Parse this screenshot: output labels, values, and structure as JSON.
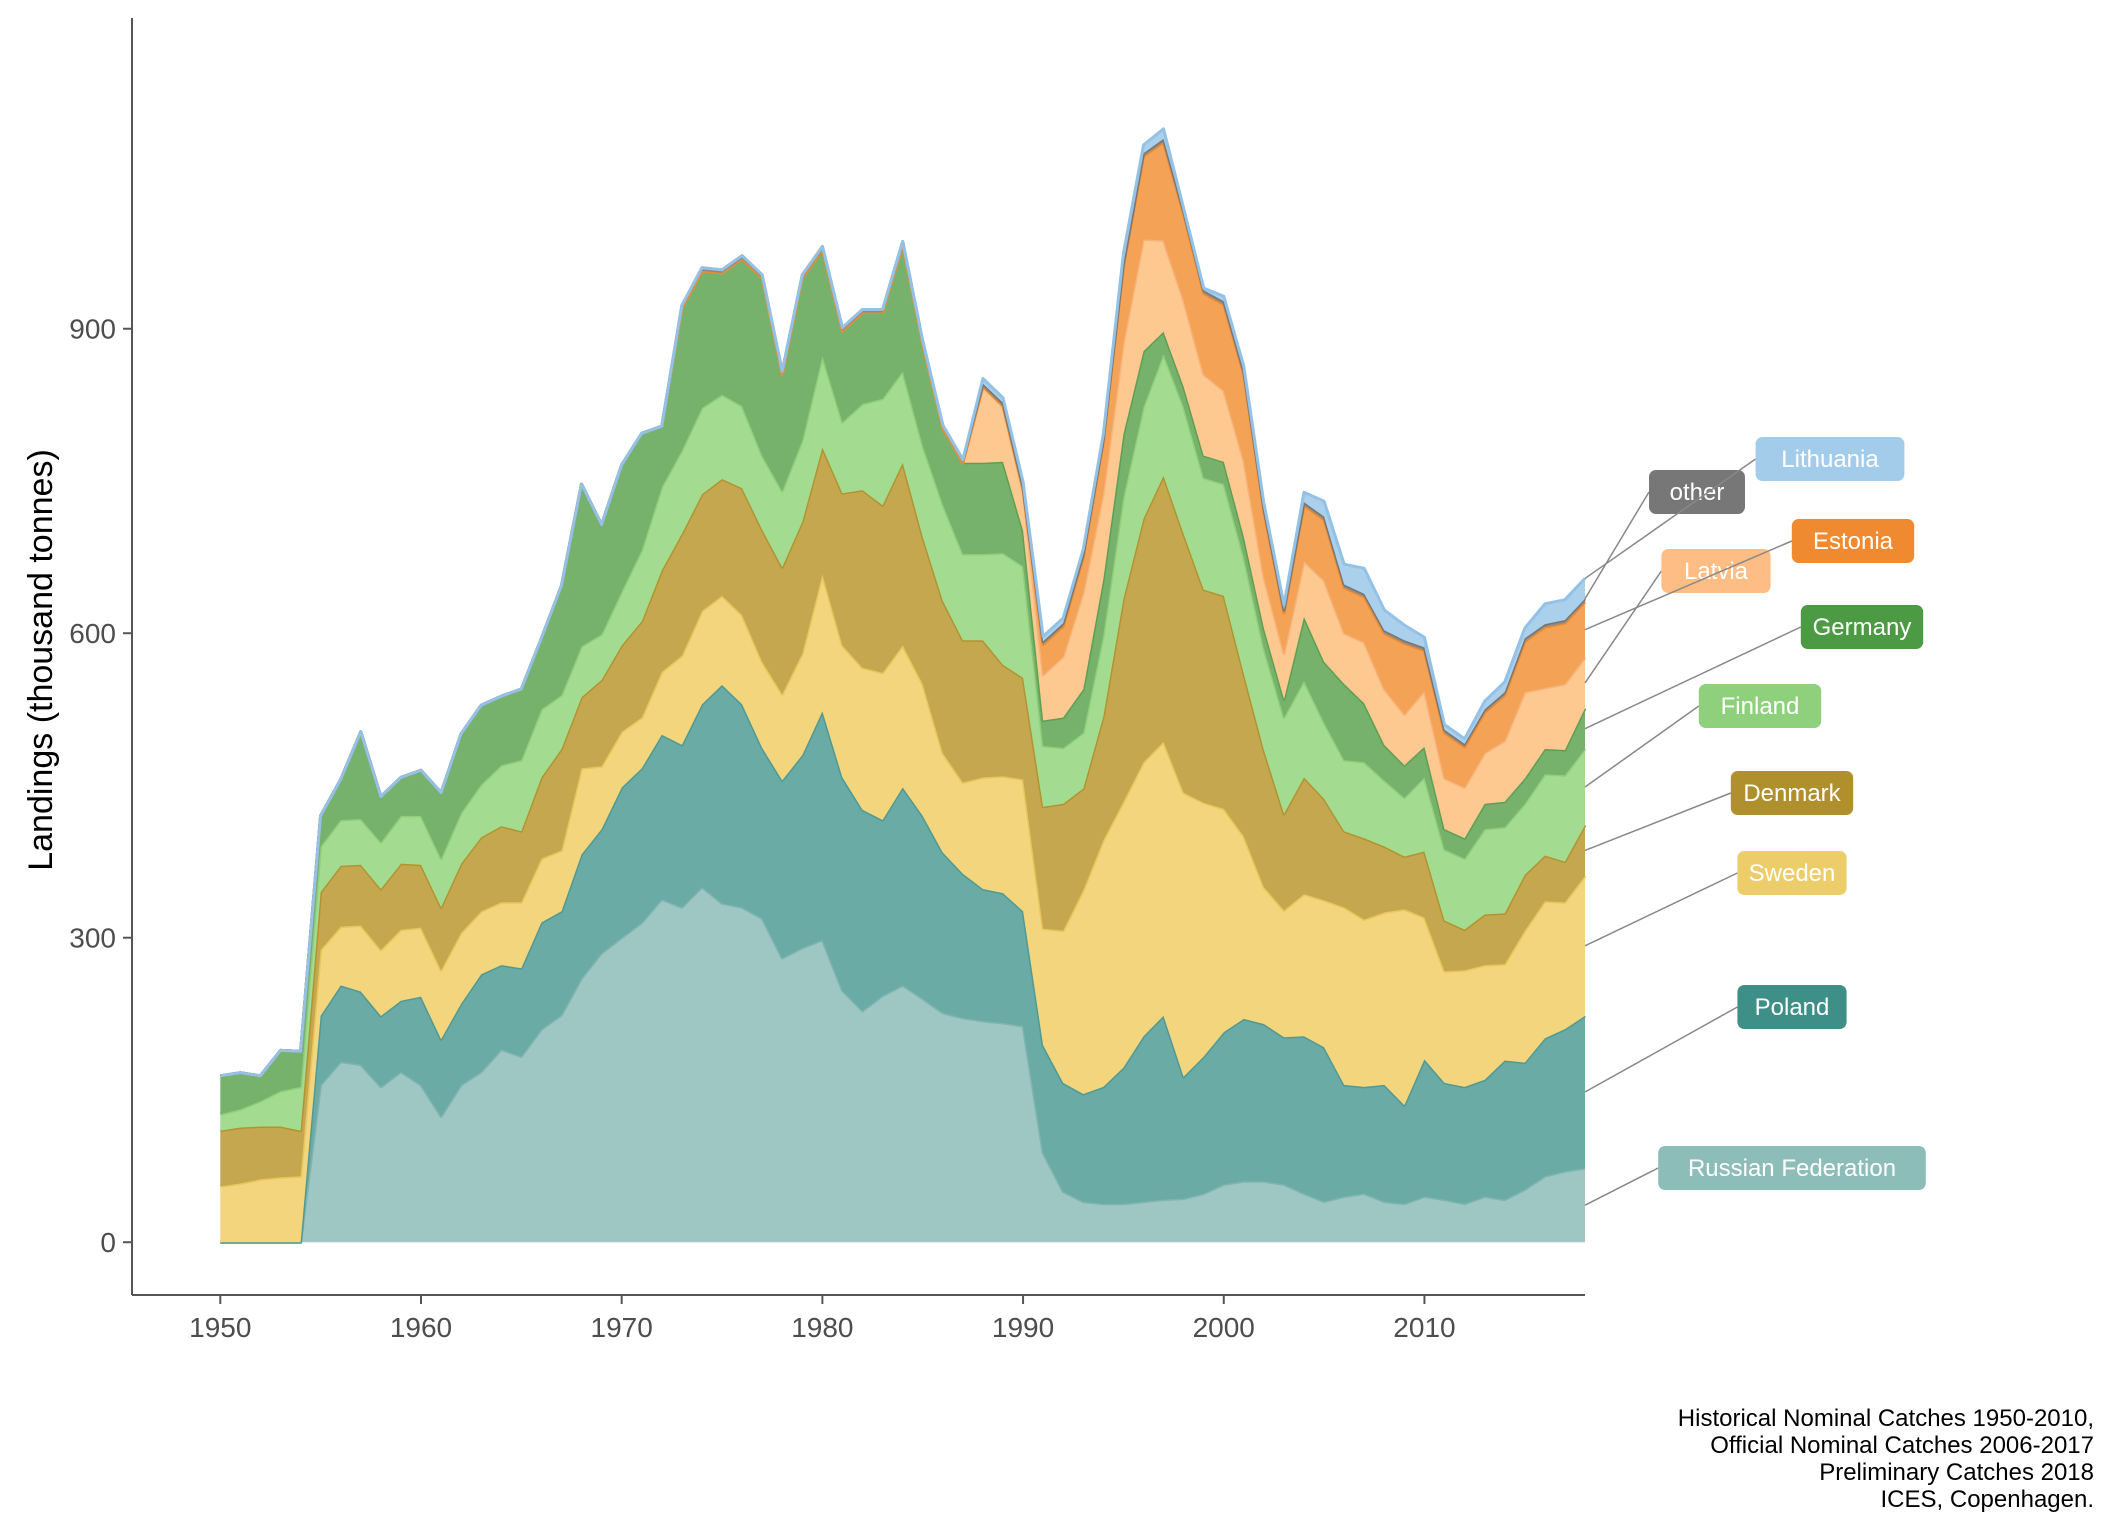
{
  "chart_data": {
    "type": "area",
    "stacked": true,
    "xlabel": "",
    "ylabel": "Landings (thousand tonnes)",
    "xlim": [
      1945.6,
      2018
    ],
    "ylim": [
      -52,
      1150
    ],
    "xticks": [
      1950,
      1960,
      1970,
      1980,
      1990,
      2000,
      2010
    ],
    "yticks": [
      0,
      300,
      600,
      900
    ],
    "grid": false,
    "legend": "labels at right end of areas",
    "x": [
      1950,
      1951,
      1952,
      1953,
      1954,
      1955,
      1956,
      1957,
      1958,
      1959,
      1960,
      1961,
      1962,
      1963,
      1964,
      1965,
      1966,
      1967,
      1968,
      1969,
      1970,
      1971,
      1972,
      1973,
      1974,
      1975,
      1976,
      1977,
      1978,
      1979,
      1980,
      1981,
      1982,
      1983,
      1984,
      1985,
      1986,
      1987,
      1988,
      1989,
      1990,
      1991,
      1992,
      1993,
      1994,
      1995,
      1996,
      1997,
      1998,
      1999,
      2000,
      2001,
      2002,
      2003,
      2004,
      2005,
      2006,
      2007,
      2008,
      2009,
      2010,
      2011,
      2012,
      2013,
      2014,
      2015,
      2016,
      2017,
      2018
    ],
    "series": [
      {
        "name": "Russian Federation",
        "color": "#9ec7c4",
        "line_color": "#7fb4b0",
        "label_color": "#8dbdb9",
        "values": [
          0,
          0,
          0,
          0,
          0,
          155,
          178,
          175,
          153,
          168,
          155,
          124,
          155,
          168,
          190,
          183,
          210,
          224,
          260,
          285,
          300,
          315,
          338,
          330,
          350,
          334,
          330,
          319,
          280,
          290,
          298,
          248,
          228,
          243,
          253,
          240,
          226,
          221,
          218,
          216,
          213,
          88,
          50,
          40,
          38,
          38,
          40,
          42,
          43,
          48,
          57,
          60,
          60,
          57,
          48,
          40,
          45,
          48,
          40,
          38,
          45,
          42,
          38,
          45,
          42,
          52,
          65,
          70,
          73
        ]
      },
      {
        "name": "Poland",
        "color": "#6aaba6",
        "line_color": "#4e9a94",
        "label_color": "#3f8f89",
        "values": [
          0,
          0,
          0,
          0,
          0,
          68,
          75,
          72,
          70,
          70,
          87,
          76,
          80,
          96,
          83,
          87,
          105,
          102,
          122,
          122,
          148,
          152,
          162,
          160,
          180,
          215,
          200,
          168,
          175,
          190,
          225,
          210,
          198,
          173,
          195,
          180,
          158,
          142,
          130,
          128,
          113,
          106,
          107,
          106,
          115,
          134,
          163,
          181,
          120,
          135,
          150,
          160,
          155,
          145,
          155,
          152,
          110,
          105,
          115,
          97,
          135,
          115,
          115,
          115,
          137,
          125,
          136,
          140,
          150
        ]
      },
      {
        "name": "Sweden",
        "color": "#f2d57c",
        "line_color": "#e8c65b",
        "label_color": "#eccd6a",
        "values": [
          55,
          58,
          62,
          64,
          65,
          65,
          58,
          65,
          65,
          70,
          68,
          68,
          70,
          62,
          62,
          65,
          63,
          60,
          85,
          62,
          55,
          50,
          62,
          88,
          92,
          88,
          88,
          85,
          85,
          100,
          135,
          130,
          140,
          145,
          140,
          130,
          98,
          90,
          110,
          115,
          130,
          115,
          150,
          201,
          243,
          262,
          270,
          270,
          280,
          250,
          220,
          180,
          135,
          125,
          140,
          145,
          175,
          165,
          170,
          193,
          140,
          110,
          115,
          113,
          95,
          130,
          135,
          125,
          138
        ]
      },
      {
        "name": "Denmark",
        "color": "#c5a74f",
        "line_color": "#b2942f",
        "label_color": "#b08f2d",
        "values": [
          55,
          55,
          52,
          50,
          45,
          57,
          60,
          60,
          60,
          65,
          62,
          62,
          68,
          73,
          75,
          70,
          80,
          100,
          70,
          85,
          85,
          95,
          100,
          120,
          115,
          115,
          125,
          130,
          125,
          130,
          125,
          150,
          175,
          165,
          180,
          145,
          150,
          140,
          135,
          110,
          100,
          120,
          125,
          100,
          122,
          200,
          240,
          262,
          255,
          210,
          210,
          160,
          135,
          95,
          115,
          100,
          75,
          80,
          65,
          52,
          65,
          50,
          40,
          50,
          50,
          55,
          45,
          40,
          50
        ]
      },
      {
        "name": "Finland",
        "color": "#a3dc91",
        "line_color": "#8fcf7a",
        "label_color": "#8fd07c",
        "values": [
          16,
          18,
          25,
          35,
          43,
          45,
          45,
          45,
          46,
          47,
          48,
          48,
          50,
          52,
          60,
          70,
          67,
          53,
          50,
          45,
          53,
          70,
          82,
          82,
          85,
          83,
          81,
          73,
          75,
          80,
          90,
          70,
          85,
          105,
          90,
          90,
          95,
          85,
          85,
          110,
          110,
          60,
          55,
          55,
          80,
          100,
          110,
          120,
          125,
          110,
          110,
          115,
          100,
          95,
          95,
          75,
          70,
          75,
          65,
          58,
          73,
          70,
          70,
          84,
          85,
          70,
          80,
          85,
          75
        ]
      },
      {
        "name": "Germany",
        "color": "#76b26c",
        "line_color": "#5e9f52",
        "label_color": "#4c9a43",
        "values": [
          38,
          36,
          25,
          40,
          35,
          30,
          40,
          86,
          45,
          38,
          45,
          65,
          78,
          78,
          68,
          70,
          70,
          108,
          160,
          108,
          125,
          115,
          60,
          140,
          135,
          120,
          145,
          175,
          115,
          160,
          105,
          90,
          90,
          85,
          125,
          100,
          75,
          90,
          90,
          90,
          35,
          25,
          30,
          43,
          55,
          62,
          55,
          22,
          20,
          22,
          22,
          20,
          20,
          18,
          63,
          60,
          75,
          58,
          35,
          32,
          30,
          20,
          20,
          25,
          25,
          25,
          25,
          25,
          40
        ]
      },
      {
        "name": "Latvia",
        "color": "#fec891",
        "line_color": "#f6b47a",
        "label_color": "#fdbd84",
        "values": [
          0,
          0,
          0,
          0,
          0,
          0,
          0,
          0,
          0,
          0,
          0,
          0,
          0,
          0,
          0,
          0,
          0,
          0,
          0,
          0,
          0,
          0,
          0,
          0,
          0,
          0,
          0,
          0,
          0,
          0,
          0,
          0,
          0,
          0,
          0,
          0,
          0,
          0,
          75,
          55,
          40,
          45,
          60,
          95,
          85,
          90,
          110,
          90,
          85,
          80,
          70,
          75,
          50,
          45,
          55,
          80,
          50,
          60,
          55,
          50,
          55,
          50,
          50,
          50,
          60,
          85,
          60,
          65,
          50
        ]
      },
      {
        "name": "Estonia",
        "color": "#f4a255",
        "line_color": "#ec8a2e",
        "label_color": "#ef8a31",
        "values": [
          0,
          0,
          0,
          0,
          0,
          0,
          0,
          0,
          0,
          0,
          0,
          0,
          0,
          0,
          0,
          0,
          0,
          0,
          0,
          0,
          0,
          0,
          0,
          0,
          0,
          0,
          0,
          0,
          0,
          0,
          0,
          0,
          0,
          0,
          0,
          0,
          0,
          0,
          0,
          0,
          0,
          30,
          30,
          35,
          50,
          75,
          82,
          97,
          85,
          80,
          85,
          85,
          65,
          40,
          55,
          60,
          45,
          45,
          55,
          70,
          40,
          45,
          40,
          40,
          45,
          50,
          60,
          60,
          55
        ]
      },
      {
        "name": "other",
        "color": "#8a8a8a",
        "line_color": "#777777",
        "label_color": "#777777",
        "values": [
          0,
          0,
          0,
          0,
          0,
          0,
          0,
          0,
          0,
          0,
          0,
          0,
          0,
          0,
          0,
          0,
          0,
          0,
          0,
          0,
          0,
          0,
          0,
          3,
          3,
          3,
          3,
          3,
          3,
          3,
          3,
          3,
          3,
          3,
          3,
          3,
          3,
          3,
          3,
          3,
          3,
          3,
          3,
          3,
          3,
          3,
          3,
          3,
          3,
          3,
          3,
          3,
          3,
          3,
          3,
          3,
          3,
          3,
          3,
          3,
          3,
          3,
          3,
          3,
          3,
          3,
          3,
          3,
          3
        ]
      },
      {
        "name": "Lithuania",
        "color": "#abd0ec",
        "line_color": "#93c2e6",
        "label_color": "#a3cbea",
        "values": [
          0,
          0,
          0,
          0,
          0,
          0,
          0,
          0,
          0,
          0,
          0,
          0,
          0,
          0,
          0,
          0,
          0,
          0,
          0,
          0,
          0,
          0,
          0,
          0,
          0,
          0,
          0,
          0,
          0,
          0,
          0,
          0,
          0,
          0,
          0,
          0,
          0,
          0,
          5,
          5,
          5,
          5,
          5,
          5,
          5,
          10,
          8,
          10,
          3,
          2,
          5,
          5,
          5,
          5,
          10,
          15,
          20,
          25,
          20,
          15,
          10,
          5,
          5,
          8,
          10,
          10,
          20,
          20,
          20
        ]
      }
    ]
  },
  "caption": {
    "lines": [
      "Historical Nominal Catches 1950-2010,",
      "Official Nominal Catches 2006-2017",
      "Preliminary Catches 2018",
      "ICES, Copenhagen."
    ]
  }
}
